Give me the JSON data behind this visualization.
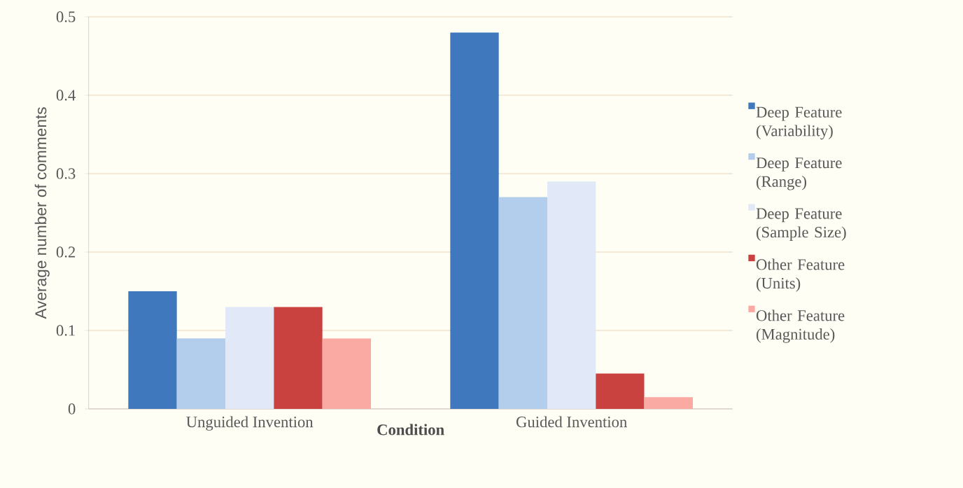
{
  "chart_data": {
    "type": "bar",
    "xlabel": "Condition",
    "ylabel": "Average number of comments",
    "categories": [
      "Unguided Invention",
      "Guided Invention"
    ],
    "series": [
      {
        "name": "Deep Feature (Variability)",
        "color": "#3f78bd",
        "values": [
          0.15,
          0.48
        ]
      },
      {
        "name": "Deep Feature (Range)",
        "color": "#b3cdec",
        "values": [
          0.09,
          0.27
        ]
      },
      {
        "name": "Deep Feature (Sample Size)",
        "color": "#e1e8f7",
        "values": [
          0.13,
          0.29
        ]
      },
      {
        "name": "Other Feature (Units)",
        "color": "#c9423f",
        "values": [
          0.13,
          0.045
        ]
      },
      {
        "name": "Other Feature (Magnitude)",
        "color": "#fbaaa3",
        "values": [
          0.09,
          0.015
        ]
      }
    ],
    "ylim": [
      0,
      0.5
    ],
    "yticks": [
      0,
      0.1,
      0.2,
      0.3,
      0.4,
      0.5
    ],
    "grid": "y",
    "legend": "right"
  }
}
